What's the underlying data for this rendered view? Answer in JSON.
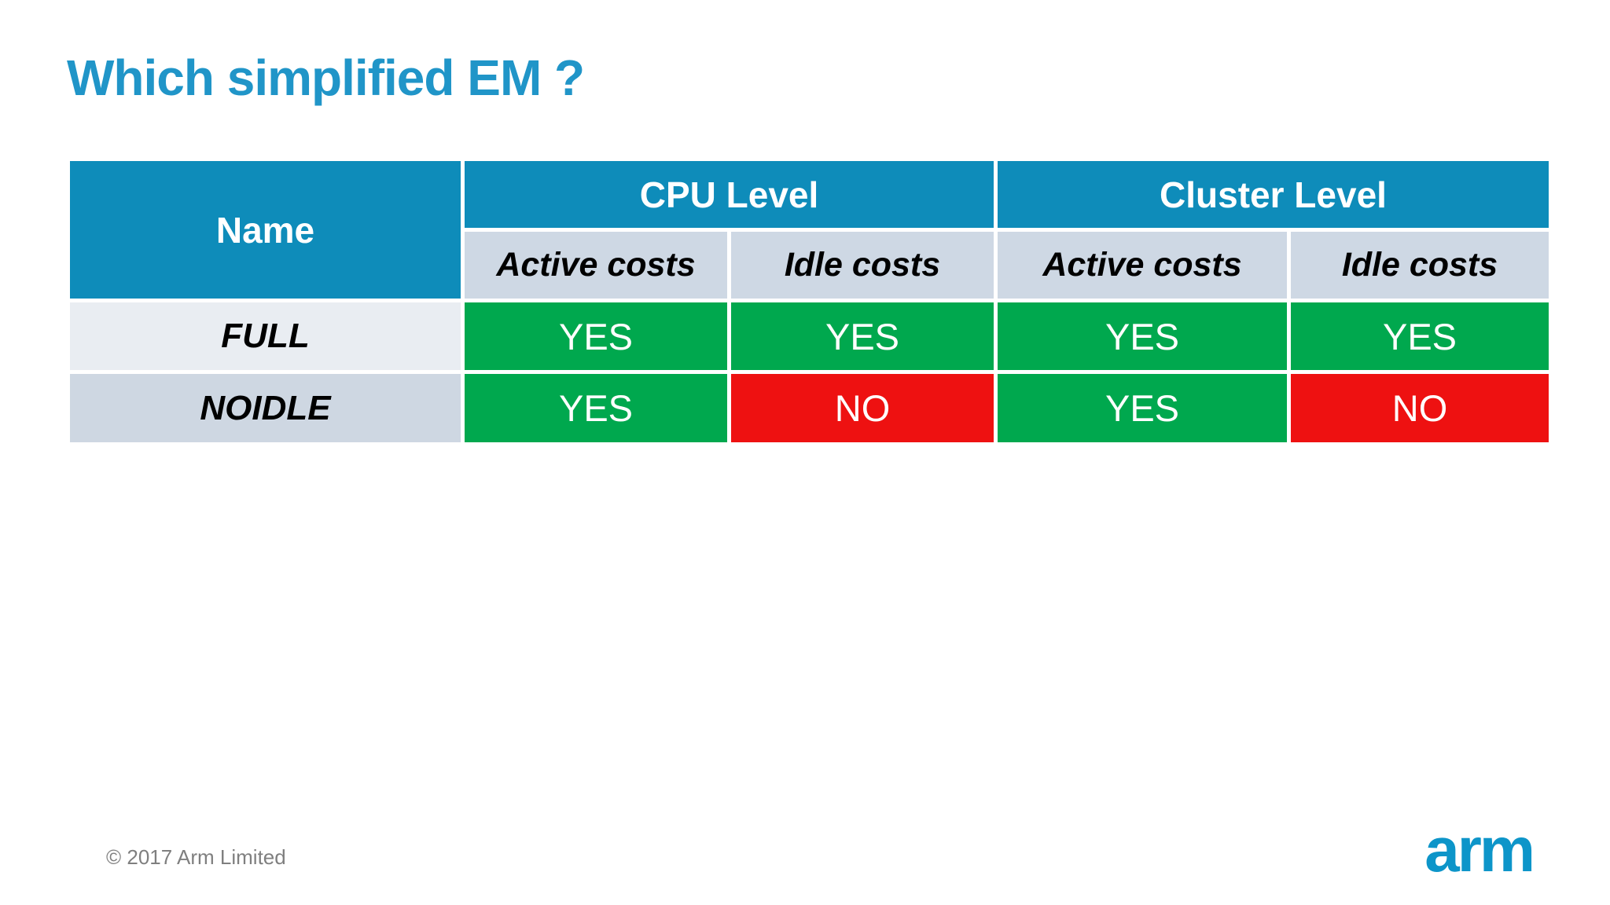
{
  "slide": {
    "title": "Which simplified EM ?",
    "footer_copyright": "© 2017 Arm Limited",
    "logo_text": "arm"
  },
  "table": {
    "corner_header": "Name",
    "group_headers": [
      "CPU Level",
      "Cluster Level"
    ],
    "sub_headers": [
      "Active costs",
      "Idle costs",
      "Active costs",
      "Idle costs"
    ],
    "rows": [
      {
        "name": "FULL",
        "values": [
          "YES",
          "YES",
          "YES",
          "YES"
        ]
      },
      {
        "name": "NOIDLE",
        "values": [
          "YES",
          "NO",
          "YES",
          "NO"
        ]
      }
    ],
    "no_value": "NO"
  },
  "colors": {
    "title_blue": "#2095C8",
    "header_blue": "#0E8CBA",
    "subheader_bg": "#CED8E4",
    "full_name_bg": "#E9EDF2",
    "noidle_name_bg": "#CED7E2",
    "yes_green": "#00A84E",
    "no_red": "#EE1111",
    "footer_gray": "#7F7F7F",
    "logo_blue": "#0D95C9"
  },
  "chart_data": {
    "type": "table",
    "title": "Which simplified EM ?",
    "columns": [
      "Name",
      "CPU Level Active costs",
      "CPU Level Idle costs",
      "Cluster Level Active costs",
      "Cluster Level Idle costs"
    ],
    "rows": [
      [
        "FULL",
        "YES",
        "YES",
        "YES",
        "YES"
      ],
      [
        "NOIDLE",
        "YES",
        "NO",
        "YES",
        "NO"
      ]
    ]
  }
}
